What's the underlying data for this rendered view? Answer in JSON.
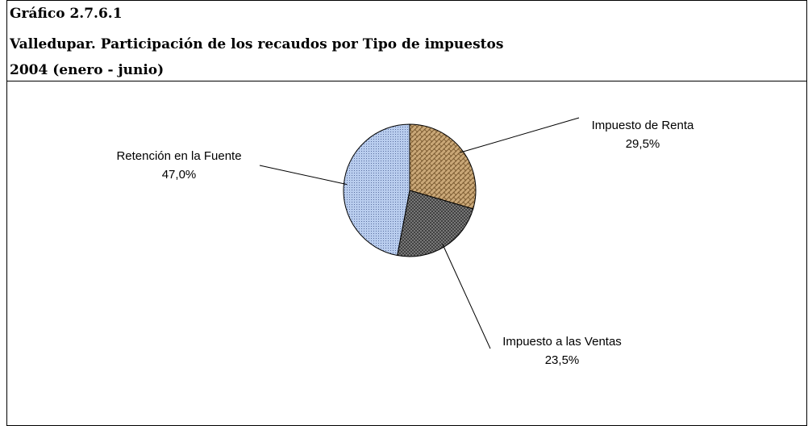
{
  "chart_data": {
    "type": "pie",
    "title": "Gráfico 2.7.6.1",
    "subtitle": [
      "Valledupar. Participación de los recaudos por Tipo de  impuestos",
      "2004  (enero - junio)"
    ],
    "categories": [
      "Impuesto de Renta",
      "Impuesto a las Ventas",
      "Retención en la Fuente"
    ],
    "values": [
      29.5,
      23.5,
      47.0
    ],
    "value_labels": [
      "29,5%",
      "23,5%",
      "47,0%"
    ],
    "colors": [
      "#c9a777",
      "#3a3a3a",
      "#b9cdee"
    ]
  }
}
